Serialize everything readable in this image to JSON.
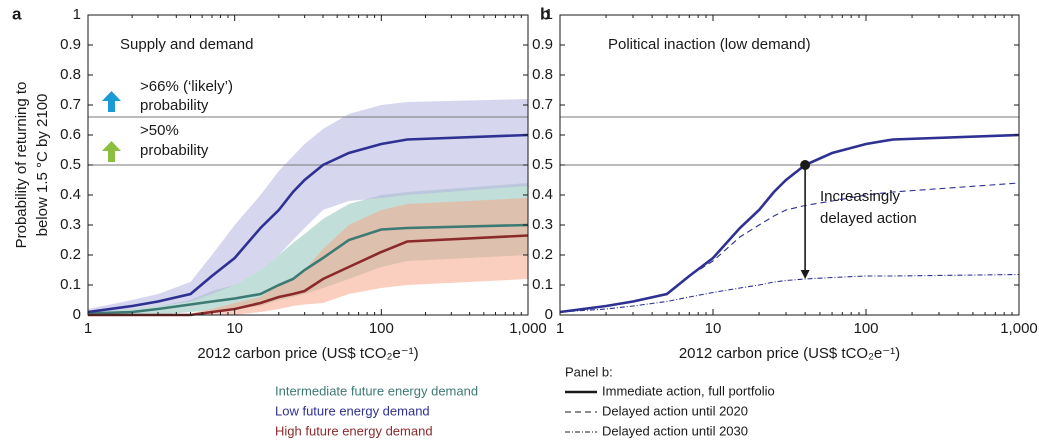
{
  "chart_data": [
    {
      "type": "line",
      "panel_label": "a",
      "ylabel": [
        "Probability of returning to",
        "below 1.5 °C by 2100"
      ],
      "xlabel": "2012 carbon price (US$ tCO₂e⁻¹)",
      "log_x": true,
      "xlim": [
        1,
        1000
      ],
      "xticks": [
        1,
        10,
        100,
        {
          "value": 1000,
          "label": "1,000"
        }
      ],
      "ylim": [
        0,
        1
      ],
      "yticks": [
        0,
        0.1,
        0.2,
        0.3,
        0.4,
        0.5,
        0.6,
        0.7,
        0.8,
        0.9,
        1
      ],
      "hlines": [
        0.66,
        0.5
      ],
      "annotations": [
        "Supply and demand",
        ">66% (‘likely’)",
        "probability",
        ">50%",
        "probability"
      ],
      "x": [
        1,
        2,
        3,
        5,
        7,
        10,
        15,
        20,
        25,
        30,
        40,
        60,
        100,
        150,
        1000
      ],
      "series": [
        {
          "name": "Intermediate future energy demand",
          "color": "#3d7a74",
          "band_color": "#8fc2b8",
          "dash": "solid",
          "values": [
            0.005,
            0.01,
            0.02,
            0.035,
            0.045,
            0.055,
            0.07,
            0.1,
            0.12,
            0.15,
            0.19,
            0.25,
            0.285,
            0.29,
            0.3
          ],
          "lower": [
            0,
            0,
            0,
            0.01,
            0.015,
            0.02,
            0.03,
            0.05,
            0.06,
            0.07,
            0.09,
            0.12,
            0.16,
            0.18,
            0.2
          ],
          "upper": [
            0.01,
            0.02,
            0.03,
            0.05,
            0.08,
            0.1,
            0.15,
            0.2,
            0.24,
            0.27,
            0.32,
            0.37,
            0.4,
            0.41,
            0.44
          ]
        },
        {
          "name": "Low future energy demand",
          "color": "#2e3192",
          "band_color": "#b5b5e2",
          "dash": "solid",
          "values": [
            0.01,
            0.03,
            0.045,
            0.07,
            0.13,
            0.19,
            0.29,
            0.35,
            0.41,
            0.45,
            0.5,
            0.54,
            0.57,
            0.585,
            0.6
          ],
          "lower": [
            0.005,
            0.02,
            0.03,
            0.045,
            0.07,
            0.1,
            0.15,
            0.2,
            0.25,
            0.29,
            0.35,
            0.38,
            0.39,
            0.4,
            0.43
          ],
          "upper": [
            0.02,
            0.05,
            0.07,
            0.11,
            0.2,
            0.3,
            0.4,
            0.48,
            0.53,
            0.57,
            0.62,
            0.67,
            0.7,
            0.71,
            0.72
          ]
        },
        {
          "name": "High future energy demand",
          "color": "#8b2a2a",
          "band_color": "#f6a88c",
          "dash": "solid",
          "values": [
            0,
            0,
            0,
            0,
            0.01,
            0.02,
            0.04,
            0.06,
            0.07,
            0.08,
            0.12,
            0.16,
            0.21,
            0.245,
            0.265
          ],
          "lower": [
            0,
            0,
            0,
            0,
            0,
            0,
            0.01,
            0.02,
            0.03,
            0.035,
            0.04,
            0.07,
            0.09,
            0.1,
            0.12
          ],
          "upper": [
            0,
            0,
            0,
            0.005,
            0.02,
            0.04,
            0.06,
            0.1,
            0.12,
            0.15,
            0.22,
            0.3,
            0.35,
            0.37,
            0.39
          ]
        }
      ]
    },
    {
      "type": "line",
      "panel_label": "b",
      "xlabel": "2012 carbon price (US$ tCO₂e⁻¹)",
      "log_x": true,
      "xlim": [
        1,
        1000
      ],
      "xticks": [
        1,
        10,
        100,
        {
          "value": 1000,
          "label": "1,000"
        }
      ],
      "ylim": [
        0,
        1
      ],
      "yticks": [
        0,
        0.1,
        0.2,
        0.3,
        0.4,
        0.5,
        0.6,
        0.7,
        0.8,
        0.9,
        1
      ],
      "hlines": [
        0.66,
        0.5
      ],
      "annotations": [
        "Political inaction (low demand)",
        "Increasingly",
        "delayed action"
      ],
      "arrow": {
        "x": 40,
        "from": 0.5,
        "to": 0.12
      },
      "legend_title": "Panel b:",
      "x": [
        1,
        2,
        3,
        5,
        7,
        10,
        15,
        20,
        25,
        30,
        40,
        60,
        100,
        150,
        1000
      ],
      "series": [
        {
          "name": "Immediate action, full portfolio",
          "color": "#2e3192",
          "dash": "solid",
          "values": [
            0.01,
            0.03,
            0.045,
            0.07,
            0.13,
            0.19,
            0.29,
            0.35,
            0.41,
            0.45,
            0.5,
            0.54,
            0.57,
            0.585,
            0.6
          ]
        },
        {
          "name": "Delayed action until 2020",
          "color": "#2e3192",
          "dash": "dashed",
          "values": [
            0.01,
            0.03,
            0.045,
            0.07,
            0.13,
            0.18,
            0.26,
            0.3,
            0.33,
            0.35,
            0.365,
            0.38,
            0.4,
            0.41,
            0.44
          ]
        },
        {
          "name": "Delayed action until 2030",
          "color": "#2e3192",
          "dash": "dashdot",
          "values": [
            0.01,
            0.02,
            0.03,
            0.045,
            0.06,
            0.075,
            0.09,
            0.1,
            0.11,
            0.115,
            0.12,
            0.125,
            0.13,
            0.13,
            0.135
          ]
        }
      ]
    }
  ]
}
